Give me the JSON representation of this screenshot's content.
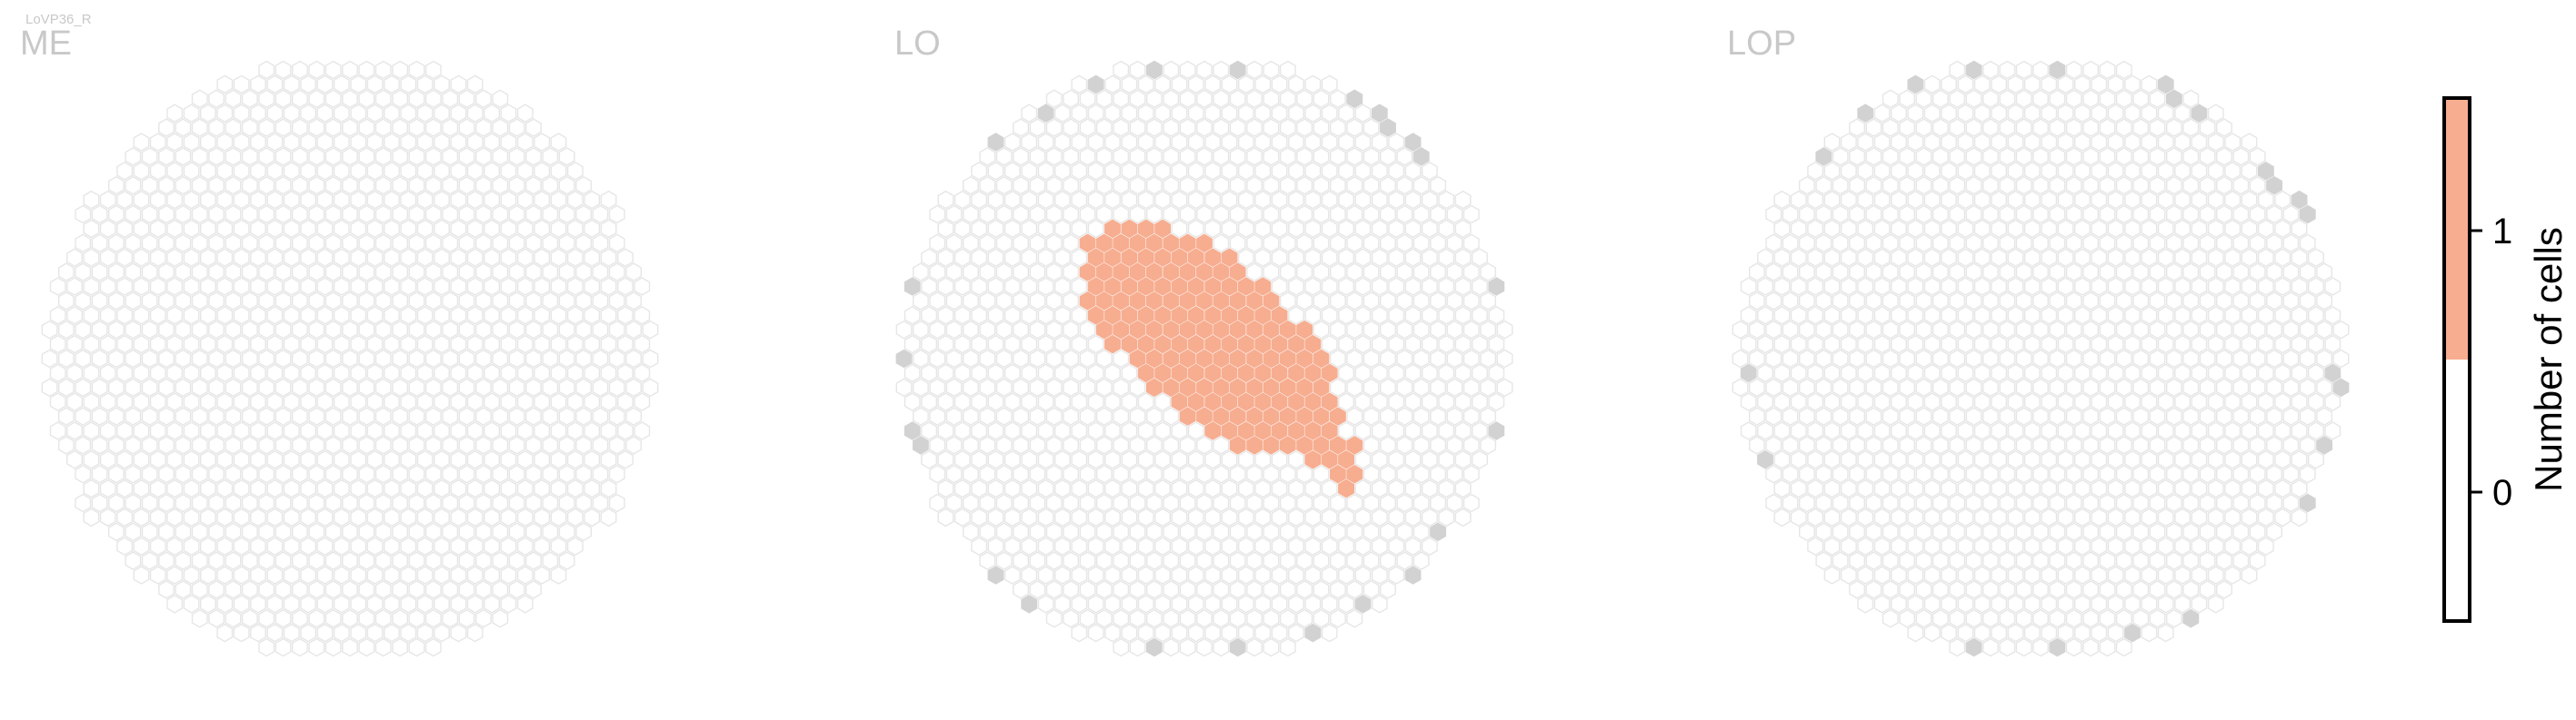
{
  "figure": {
    "cell_type": "LoVP36_R",
    "panel_titles": [
      "ME",
      "LO",
      "LOP"
    ]
  },
  "colors": {
    "empty_outline": "#e6e6e6",
    "edge_fill": "#d2d2d2",
    "one_cell_fill": "#f7ad90",
    "title_gray": "#c8c8c8",
    "colorbar_zero": "#ffffff",
    "colorbar_one": "#f7ad90"
  },
  "chart_data": [
    {
      "type": "heatmap",
      "title": "ME",
      "description_values": "All hexagonal columns have 0 cells",
      "values_shown": [
        0
      ]
    },
    {
      "type": "heatmap",
      "title": "LO",
      "values_shown": [
        0,
        1
      ],
      "column_count_with_1_cell": 134
    },
    {
      "type": "heatmap",
      "title": "LOP",
      "values_shown": [
        0
      ]
    }
  ],
  "colorbar": {
    "label": "Number of cells",
    "ticks": [
      "0",
      "1"
    ],
    "range": [
      0,
      1
    ]
  }
}
